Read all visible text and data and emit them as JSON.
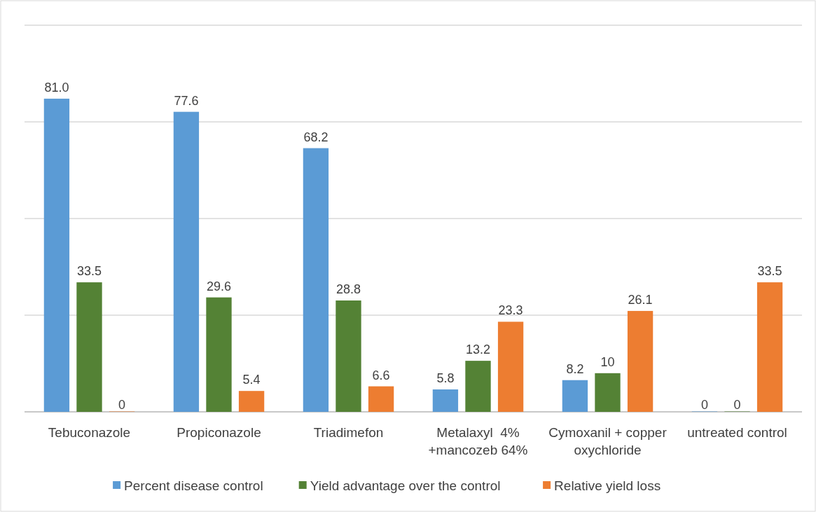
{
  "chart_data": {
    "type": "bar",
    "categories": [
      "Tebuconazole",
      "Propiconazole",
      "Triadimefon",
      "Metalaxyl  4% +mancozeb 64%",
      "Cymoxanil + copper oxychloride",
      "untreated control"
    ],
    "series": [
      {
        "name": "Percent disease control",
        "color": "#5b9bd5",
        "values": [
          81.0,
          77.6,
          68.2,
          5.8,
          8.2,
          0
        ],
        "value_labels": [
          "81.0",
          "77.6",
          "68.2",
          "5.8",
          "8.2",
          "0"
        ]
      },
      {
        "name": "Yield advantage over the control",
        "color": "#548235",
        "values": [
          33.5,
          29.6,
          28.8,
          13.2,
          10,
          0
        ],
        "value_labels": [
          "33.5",
          "29.6",
          "28.8",
          "13.2",
          "10",
          "0"
        ]
      },
      {
        "name": "Relative yield loss",
        "color": "#ed7d31",
        "values": [
          0,
          5.4,
          6.6,
          23.3,
          26.1,
          33.5
        ],
        "value_labels": [
          "0",
          "5.4",
          "6.6",
          "23.3",
          "26.1",
          "33.5"
        ]
      }
    ],
    "ylim": [
      0,
      100
    ],
    "yticks": [
      {
        "value": 0,
        "label": null
      },
      {
        "value": 25,
        "label": null
      },
      {
        "value": 50,
        "label": null
      },
      {
        "value": 75,
        "label": null
      },
      {
        "value": 100,
        "label": null
      }
    ],
    "grid": "y",
    "tick_labels": "x",
    "legend": "bottom"
  }
}
